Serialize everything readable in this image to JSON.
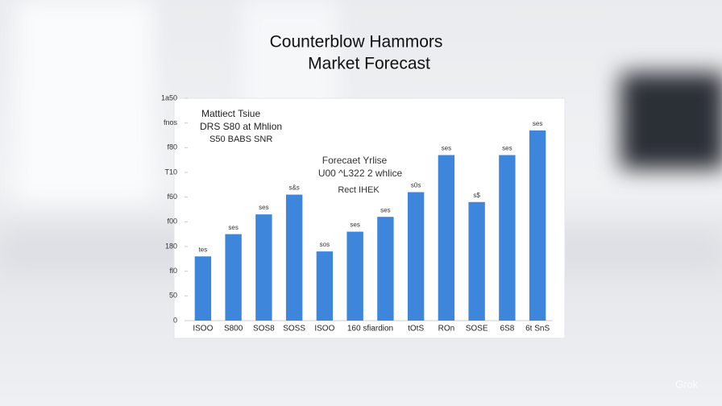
{
  "chart_data": {
    "type": "bar",
    "title": "Counterblow Hammors",
    "subtitle": "Market Forecast",
    "annotations": [
      "Mattiect Tsiue",
      "DRS S80 at Mhlion",
      "S50 BABS SNR",
      "Forecaet Yrlise",
      "U00 ^L322 2 whlice",
      "Rect IHEK"
    ],
    "categories": [
      "ISOO",
      "S800",
      "SOS8",
      "SOSS",
      "ISOO",
      "160 sfiardion",
      null,
      "tOtS",
      "ROn",
      "SOSE",
      "6S8",
      "6t SnS"
    ],
    "values": [
      2.6,
      3.5,
      4.3,
      5.1,
      2.8,
      3.6,
      4.2,
      5.2,
      6.7,
      4.8,
      6.7,
      7.7
    ],
    "bar_labels": [
      "tes",
      "ses",
      "ses",
      "s&s",
      "sos",
      "ses",
      "ses",
      "s0s",
      "ses",
      "s$",
      "ses",
      "ses"
    ],
    "color": "#3d86db",
    "ylim": [
      0,
      9
    ],
    "yticks": [
      {
        "value": 0,
        "label": "0"
      },
      {
        "value": 1,
        "label": "50"
      },
      {
        "value": 2,
        "label": "fl0"
      },
      {
        "value": 3,
        "label": "180"
      },
      {
        "value": 4,
        "label": "f00"
      },
      {
        "value": 5,
        "label": "f60"
      },
      {
        "value": 6,
        "label": "T10"
      },
      {
        "value": 7,
        "label": "f80"
      },
      {
        "value": 8,
        "label": "fnos"
      },
      {
        "value": 9,
        "label": "1a50"
      }
    ],
    "grid": false
  },
  "watermark": "Grok"
}
